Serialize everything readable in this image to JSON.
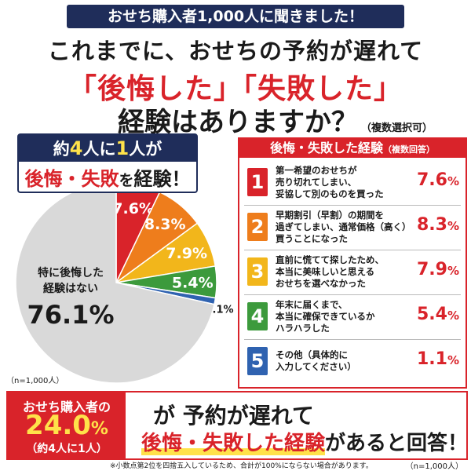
{
  "header": {
    "banner": "おせち購入者1,000人に聞きました！",
    "title_line1": "これまでに、おせちの予約が遅れて",
    "title_line2": "「後悔した」「失敗した」",
    "title_line3": "経験はありますか？",
    "title_note": "（複数選択可）"
  },
  "callout": {
    "pre": "約",
    "num1": "4",
    "mid": "人に",
    "num2": "1",
    "post": "人が",
    "red": "後悔・失敗",
    "wo": "を",
    "tail": "経験！"
  },
  "chart_data": {
    "type": "pie",
    "slices": [
      {
        "label": "",
        "value": 7.6,
        "value_label": "7.6%",
        "color": "#d9232a"
      },
      {
        "label": "",
        "value": 8.3,
        "value_label": "8.3%",
        "color": "#ee7d1c"
      },
      {
        "label": "",
        "value": 7.9,
        "value_label": "7.9%",
        "color": "#f2b61b"
      },
      {
        "label": "",
        "value": 5.4,
        "value_label": "5.4%",
        "color": "#3c9a3c"
      },
      {
        "label": "",
        "value": 1.1,
        "value_label": "1.1%",
        "color": "#2f62b0"
      },
      {
        "label": "特に後悔した経験はない",
        "label_line1": "特に後悔した",
        "label_line2": "経験はない",
        "value": 76.1,
        "value_label": "76.1%",
        "color": "#d9d9d9"
      }
    ],
    "n_note": "（n=1,000人）"
  },
  "panel": {
    "title": "後悔・失敗した経験",
    "subtitle": "（複数回答）",
    "items": [
      {
        "num": "1",
        "color": "#d9232a",
        "lines": [
          "第一希望のおせちが",
          "売り切れてしまい、",
          "妥協して別のものを買った"
        ],
        "value": "7.6"
      },
      {
        "num": "2",
        "color": "#ee7d1c",
        "lines": [
          "早期割引（早割）の期間を",
          "過ぎてしまい、通常価格（高く）",
          "買うことになった"
        ],
        "value": "8.3"
      },
      {
        "num": "3",
        "color": "#f2b61b",
        "lines": [
          "直前に慌てて探したため、",
          "本当に美味しいと思える",
          "おせちを選べなかった"
        ],
        "value": "7.9"
      },
      {
        "num": "4",
        "color": "#3c9a3c",
        "lines": [
          "年末に届くまで、",
          "本当に確保できているか",
          "ハラハラした"
        ],
        "value": "5.4"
      },
      {
        "num": "5",
        "color": "#2f62b0",
        "lines": [
          "その他（具体的に",
          "入力してください）"
        ],
        "value": "1.1"
      }
    ],
    "pct": "%"
  },
  "bottom": {
    "label1": "おせち購入者の",
    "big": "24.0",
    "pct": "%",
    "label3": "（約4人に1人）",
    "line1": "が 予約が遅れて",
    "line2_red": "後悔・失敗した経験",
    "line2_tail": "があると回答！"
  },
  "footnote": "※小数点第2位を四捨五入しているため、合計が100%にならない場合があります。",
  "footnote_n": "（n=1,000人）"
}
